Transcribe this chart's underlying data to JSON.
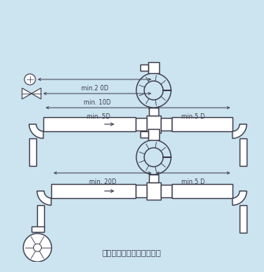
{
  "bg_color": "#cce4f0",
  "line_color": "#404050",
  "lw": 1.0,
  "title": "弯管、阀门和泵之间的安装",
  "title_fontsize": 7.5,
  "label_5D_left": "min. 5D",
  "label_5D_right": "min.5 D",
  "label_10D": "min. 10D",
  "label_20D_top": "min.2 0D",
  "label_20D_bot_left": "min. 20D",
  "label_5D_bot_right": "min.5 D"
}
